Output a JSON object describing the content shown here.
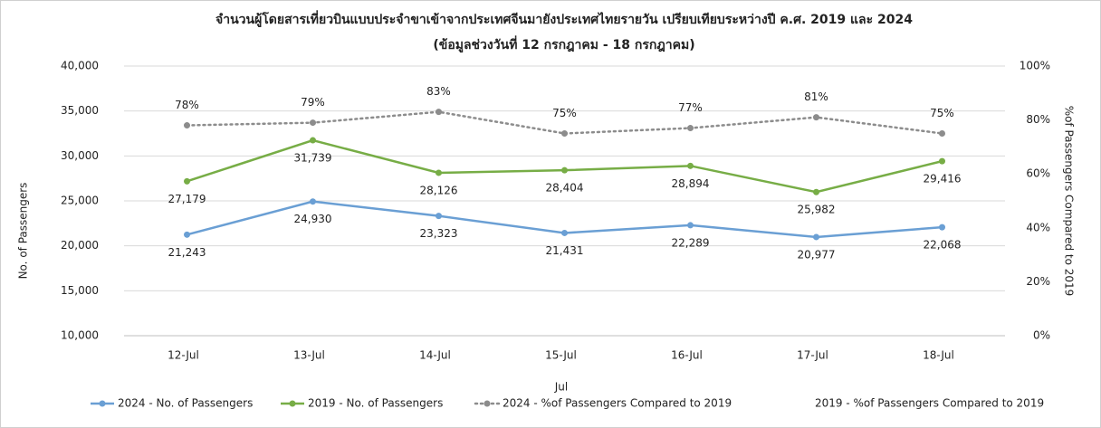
{
  "chart_data": {
    "type": "line",
    "title": "จำนวนผู้โดยสารเที่ยวบินแบบประจำขาเข้าจากประเทศจีนมายังประเทศไทยรายวัน เปรียบเทียบระหว่างปี ค.ศ. 2019 และ 2024",
    "subtitle": "(ข้อมูลช่วงวันที่ 12 กรกฎาคม - 18 กรกฎาคม)",
    "x_label": "Jul",
    "y_label": "No. of Passengers",
    "y2_label": "%of Passengers Compared to 2019",
    "categories": [
      "12-Jul",
      "13-Jul",
      "14-Jul",
      "15-Jul",
      "16-Jul",
      "17-Jul",
      "18-Jul"
    ],
    "ylim": [
      10000,
      40000
    ],
    "yticks": [
      {
        "value": 10000,
        "label": "10,000"
      },
      {
        "value": 15000,
        "label": "15,000"
      },
      {
        "value": 20000,
        "label": "20,000"
      },
      {
        "value": 25000,
        "label": "25,000"
      },
      {
        "value": 30000,
        "label": "30,000"
      },
      {
        "value": 35000,
        "label": "35,000"
      },
      {
        "value": 40000,
        "label": "40,000"
      }
    ],
    "y2lim": [
      0,
      100
    ],
    "y2ticks": [
      {
        "value": 0,
        "label": "0%"
      },
      {
        "value": 20,
        "label": "20%"
      },
      {
        "value": 40,
        "label": "40%"
      },
      {
        "value": 60,
        "label": "60%"
      },
      {
        "value": 80,
        "label": "80%"
      },
      {
        "value": 100,
        "label": "100%"
      }
    ],
    "grid": true,
    "legend": "bottom",
    "series": [
      {
        "name": "2024 - No. of Passengers",
        "color": "#6a9fd4",
        "line_style": "solid",
        "values": [
          21243,
          24930,
          23323,
          21431,
          22289,
          20977,
          22068
        ],
        "value_labels": [
          "21,243",
          "24,930",
          "23,323",
          "21,431",
          "22,289",
          "20,977",
          "22,068"
        ]
      },
      {
        "name": "2019 - No. of Passengers",
        "color": "#77ad46",
        "line_style": "solid",
        "values": [
          27179,
          31739,
          28126,
          28404,
          28894,
          25982,
          29416
        ],
        "value_labels": [
          "27,179",
          "31,739",
          "28,126",
          "28,404",
          "28,894",
          "25,982",
          "29,416"
        ]
      },
      {
        "name": "2024 - %of Passengers Compared to 2019",
        "color": "#8c8c8c",
        "line_style": "dotted",
        "axis": "y2",
        "values": [
          78,
          79,
          83,
          75,
          77,
          81,
          75
        ],
        "value_labels": [
          "78%",
          "79%",
          "83%",
          "75%",
          "77%",
          "81%",
          "75%"
        ]
      },
      {
        "name": "2019 - %of Passengers Compared to 2019",
        "axis": "y2",
        "values": [
          null,
          null,
          null,
          null,
          null,
          null,
          null
        ]
      }
    ]
  }
}
